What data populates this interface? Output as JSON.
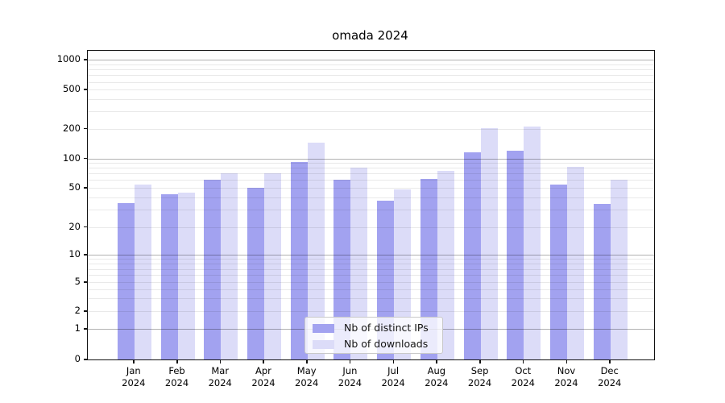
{
  "chart_data": {
    "type": "bar",
    "title": "omada 2024",
    "categories": [
      "Jan",
      "Feb",
      "Mar",
      "Apr",
      "May",
      "Jun",
      "Jul",
      "Aug",
      "Sep",
      "Oct",
      "Nov",
      "Dec"
    ],
    "year": "2024",
    "series": [
      {
        "name": "Nb of distinct IPs",
        "color": "#a2a2f0",
        "values": [
          35,
          43,
          60,
          50,
          92,
          60,
          37,
          62,
          115,
          119,
          54,
          34
        ]
      },
      {
        "name": "Nb of downloads",
        "color": "#dcdcf8",
        "values": [
          54,
          45,
          71,
          70,
          145,
          80,
          48,
          75,
          202,
          210,
          82,
          60
        ]
      }
    ],
    "y_axis": {
      "scale": "log above 1, compressed linear below 1",
      "tick_labels": [
        "0",
        "1",
        "2",
        "5",
        "10",
        "20",
        "50",
        "100",
        "200",
        "500",
        "1000"
      ],
      "ticks": [
        0,
        1,
        2,
        5,
        10,
        20,
        50,
        100,
        200,
        500,
        1000
      ],
      "major_gridlines": [
        1,
        10,
        100,
        1000
      ],
      "minor_gridlines": [
        2,
        3,
        4,
        5,
        6,
        7,
        8,
        9,
        20,
        30,
        40,
        50,
        60,
        70,
        80,
        90,
        200,
        300,
        400,
        500,
        600,
        700,
        800,
        900
      ],
      "ylim_top": 1200
    },
    "x_axis": {
      "tick_label_line2": "2024"
    },
    "legend": {
      "position": "lower center"
    },
    "grid": true
  }
}
